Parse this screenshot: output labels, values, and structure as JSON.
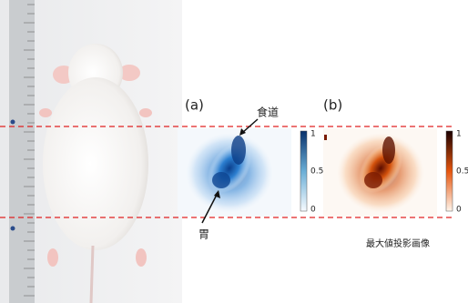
{
  "panels": [
    {
      "label": "(a)",
      "annotations": [
        "食道",
        "胃"
      ],
      "colorbar": [
        "1",
        "0.5",
        "0"
      ]
    },
    {
      "label": "(b)",
      "colorbar": [
        "1",
        "0.5",
        "0"
      ],
      "caption": "最大値投影画像"
    }
  ]
}
